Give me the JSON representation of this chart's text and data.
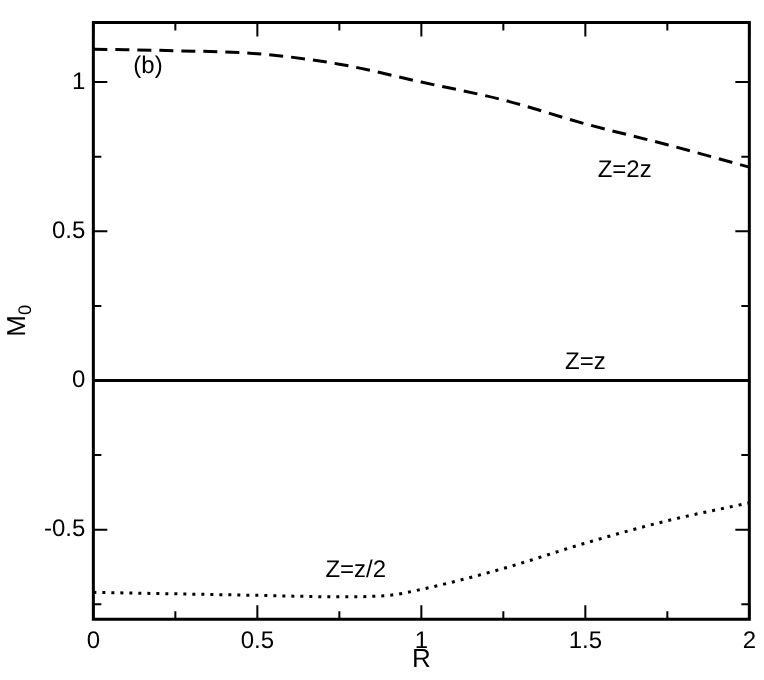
{
  "chart_data": {
    "type": "line",
    "xlabel": "R",
    "ylabel": "M$_{0}$",
    "xlim": [
      0,
      2
    ],
    "xticks": [
      0,
      {
        "value": 0.25,
        "label": null
      },
      0.5,
      {
        "value": 0.75,
        "label": null
      },
      1,
      {
        "value": 1.25,
        "label": null
      },
      1.5,
      {
        "value": 1.75,
        "label": null
      },
      2
    ],
    "ylim": [
      -0.8,
      1.2
    ],
    "yticks": [
      {
        "value": -0.75,
        "label": null
      },
      -0.5,
      {
        "value": -0.25,
        "label": null
      },
      0,
      {
        "value": 0.25,
        "label": null
      },
      0.5,
      {
        "value": 0.75,
        "label": null
      },
      1
    ],
    "grid": false,
    "legend": false,
    "marker": "none",
    "series": [
      {
        "name": "Z=2z",
        "color": "#000000",
        "line_style": "dashed",
        "x": [
          0,
          0.25,
          0.5,
          0.75,
          1,
          1.25,
          1.5,
          1.75,
          2
        ],
        "values": [
          1.11,
          1.105,
          1.095,
          1.06,
          1.0,
          0.94,
          0.86,
          0.79,
          0.715
        ]
      },
      {
        "name": "Z=z",
        "color": "#000000",
        "line_style": "solid",
        "x": [
          0,
          2
        ],
        "values": [
          0,
          0
        ]
      },
      {
        "name": "Z=z/2",
        "color": "#000000",
        "line_style": "dotted",
        "x": [
          0,
          0.25,
          0.5,
          0.75,
          0.9,
          1,
          1.25,
          1.5,
          1.75,
          2
        ],
        "values": [
          -0.71,
          -0.715,
          -0.72,
          -0.725,
          -0.72,
          -0.7,
          -0.63,
          -0.545,
          -0.47,
          -0.41
        ]
      }
    ],
    "annotations": [
      "(b)"
    ]
  }
}
